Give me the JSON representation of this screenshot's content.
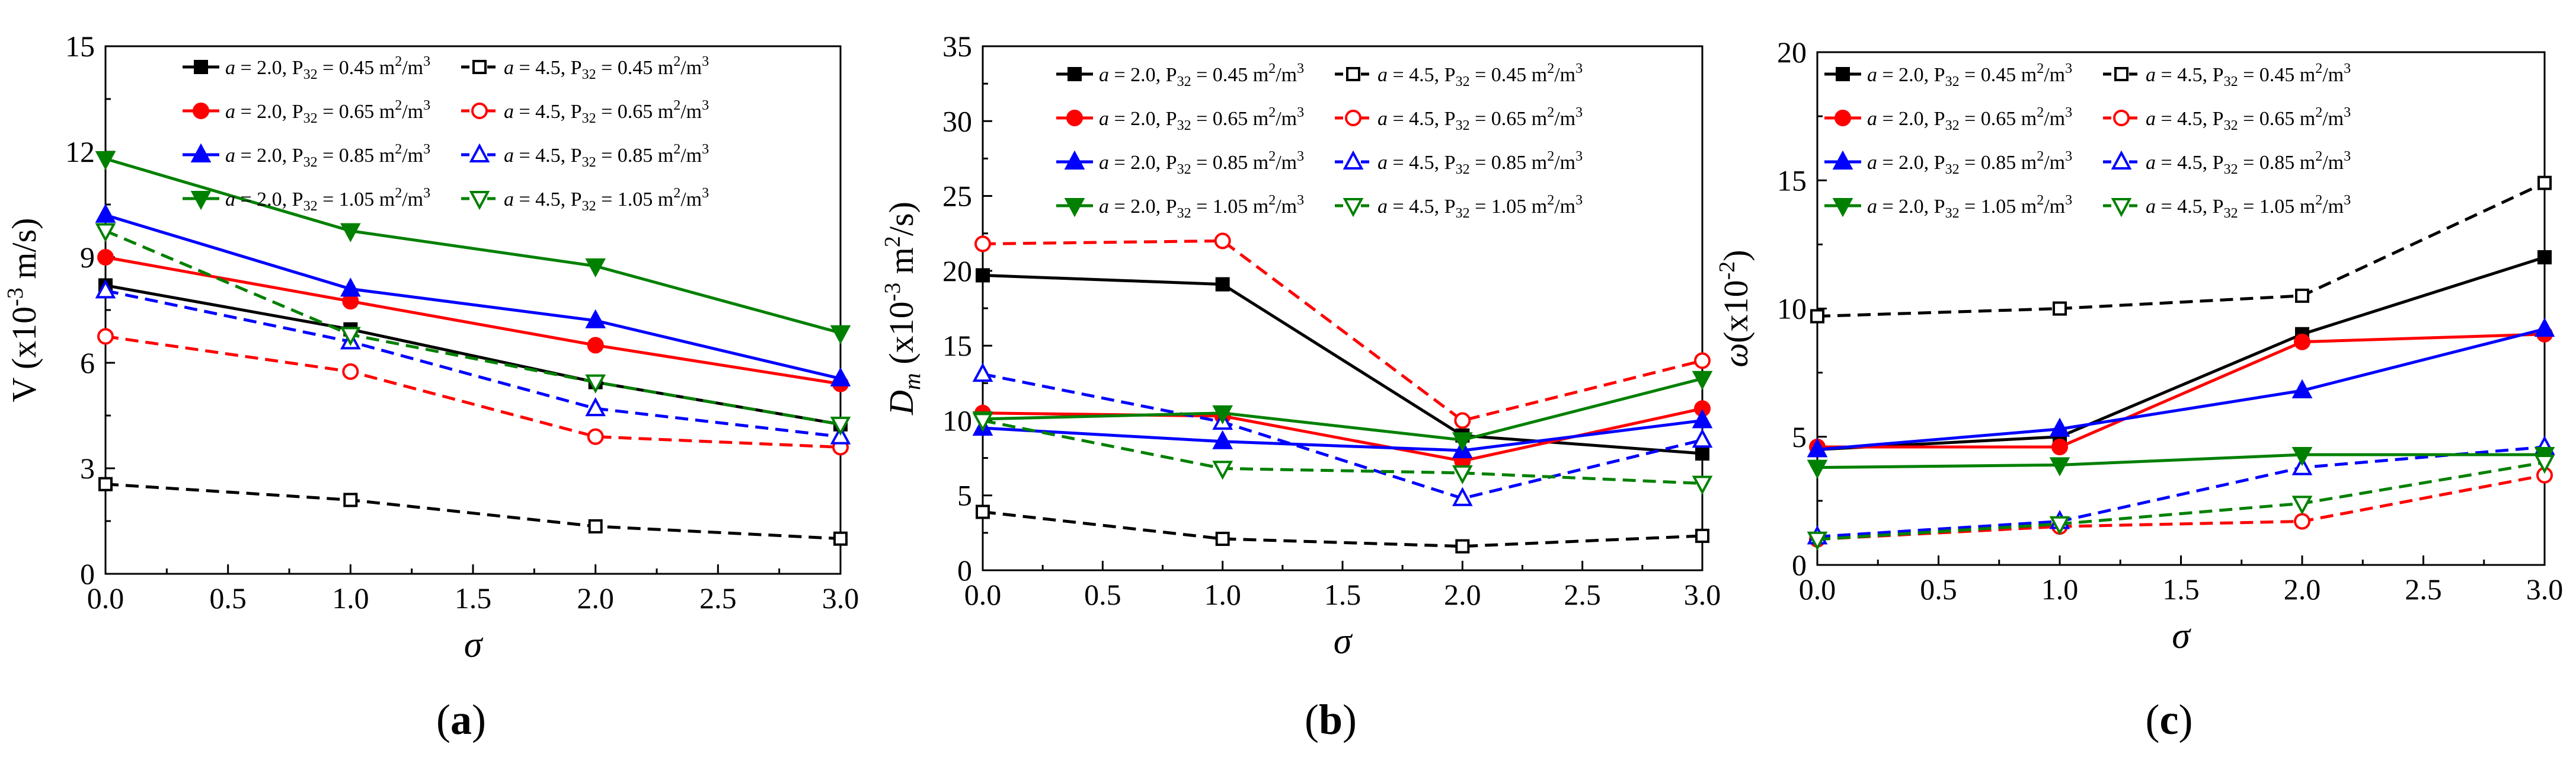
{
  "chart_data": [
    {
      "type": "line",
      "panel_label": "a",
      "xlabel": "σ",
      "ylabel": "V (x10⁻³ m/s)",
      "x": [
        0.0,
        1.0,
        2.0,
        3.0
      ],
      "xlim": [
        0.0,
        3.0
      ],
      "ylim": [
        0,
        15
      ],
      "xticks": [
        "0.0",
        "0.5",
        "1.0",
        "1.5",
        "2.0",
        "2.5",
        "3.0"
      ],
      "yticks": [
        "0",
        "3",
        "6",
        "9",
        "12",
        "15"
      ],
      "series": [
        {
          "name": "a = 2.0, P32 = 0.45 m²/m³",
          "color": "#000000",
          "marker": "square",
          "filled": true,
          "dashed": false,
          "values": [
            8.2,
            6.95,
            5.45,
            4.25
          ]
        },
        {
          "name": "a = 4.5, P32 = 0.45 m²/m³",
          "color": "#000000",
          "marker": "square",
          "filled": false,
          "dashed": true,
          "values": [
            2.55,
            2.1,
            1.35,
            1.0
          ]
        },
        {
          "name": "a = 2.0, P32 = 0.65 m²/m³",
          "color": "#ff0000",
          "marker": "circle",
          "filled": true,
          "dashed": false,
          "values": [
            9.0,
            7.75,
            6.5,
            5.4
          ]
        },
        {
          "name": "a = 4.5, P32 = 0.65 m²/m³",
          "color": "#ff0000",
          "marker": "circle",
          "filled": false,
          "dashed": true,
          "values": [
            6.75,
            5.75,
            3.9,
            3.6
          ]
        },
        {
          "name": "a = 2.0, P32 = 0.85 m²/m³",
          "color": "#0000ff",
          "marker": "triangle-up",
          "filled": true,
          "dashed": false,
          "values": [
            10.2,
            8.1,
            7.2,
            5.55
          ]
        },
        {
          "name": "a = 4.5, P32 = 0.85 m²/m³",
          "color": "#0000ff",
          "marker": "triangle-up",
          "filled": false,
          "dashed": true,
          "values": [
            8.05,
            6.6,
            4.7,
            3.9
          ]
        },
        {
          "name": "a = 2.0, P32 = 1.05 m²/m³",
          "color": "#008000",
          "marker": "triangle-down",
          "filled": true,
          "dashed": false,
          "values": [
            11.8,
            9.75,
            8.75,
            6.85
          ]
        },
        {
          "name": "a = 4.5, P32 = 1.05 m²/m³",
          "color": "#008000",
          "marker": "triangle-down",
          "filled": false,
          "dashed": true,
          "values": [
            9.75,
            6.8,
            5.45,
            4.25
          ]
        }
      ]
    },
    {
      "type": "line",
      "panel_label": "b",
      "xlabel": "σ",
      "ylabel": "Dm (x10⁻³ m²/s)",
      "x": [
        0.0,
        1.0,
        2.0,
        3.0
      ],
      "xlim": [
        0.0,
        3.0
      ],
      "ylim": [
        0,
        35
      ],
      "xticks": [
        "0.0",
        "0.5",
        "1.0",
        "1.5",
        "2.0",
        "2.5",
        "3.0"
      ],
      "yticks": [
        "0",
        "5",
        "10",
        "15",
        "20",
        "25",
        "30",
        "35"
      ],
      "series": [
        {
          "name": "a = 2.0, P32 = 0.45 m²/m³",
          "color": "#000000",
          "marker": "square",
          "filled": true,
          "dashed": false,
          "values": [
            19.7,
            19.1,
            9.0,
            7.8
          ]
        },
        {
          "name": "a = 4.5, P32 = 0.45 m²/m³",
          "color": "#000000",
          "marker": "square",
          "filled": false,
          "dashed": true,
          "values": [
            3.9,
            2.1,
            1.6,
            2.3
          ]
        },
        {
          "name": "a = 2.0, P32 = 0.65 m²/m³",
          "color": "#ff0000",
          "marker": "circle",
          "filled": true,
          "dashed": false,
          "values": [
            10.5,
            10.3,
            7.3,
            10.8
          ]
        },
        {
          "name": "a = 4.5, P32 = 0.65 m²/m³",
          "color": "#ff0000",
          "marker": "circle",
          "filled": false,
          "dashed": true,
          "values": [
            21.8,
            22.0,
            10.0,
            14.0
          ]
        },
        {
          "name": "a = 2.0, P32 = 0.85 m²/m³",
          "color": "#0000ff",
          "marker": "triangle-up",
          "filled": true,
          "dashed": false,
          "values": [
            9.5,
            8.6,
            8.0,
            10.0
          ]
        },
        {
          "name": "a = 4.5, P32 = 0.85 m²/m³",
          "color": "#0000ff",
          "marker": "triangle-up",
          "filled": false,
          "dashed": true,
          "values": [
            13.1,
            9.9,
            4.8,
            8.7
          ]
        },
        {
          "name": "a = 2.0, P32 = 1.05 m²/m³",
          "color": "#008000",
          "marker": "triangle-down",
          "filled": true,
          "dashed": false,
          "values": [
            10.1,
            10.5,
            8.7,
            12.8
          ]
        },
        {
          "name": "a = 4.5, P32 = 1.05 m²/m³",
          "color": "#008000",
          "marker": "triangle-down",
          "filled": false,
          "dashed": true,
          "values": [
            10.0,
            6.8,
            6.5,
            5.8
          ]
        }
      ]
    },
    {
      "type": "line",
      "panel_label": "c",
      "xlabel": "σ",
      "ylabel": "ω (x10⁻²)",
      "x": [
        0.0,
        1.0,
        2.0,
        3.0
      ],
      "xlim": [
        0.0,
        3.0
      ],
      "ylim": [
        0,
        20
      ],
      "xticks": [
        "0.0",
        "0.5",
        "1.0",
        "1.5",
        "2.0",
        "2.5",
        "3.0"
      ],
      "yticks": [
        "0",
        "5",
        "10",
        "15",
        "20"
      ],
      "series": [
        {
          "name": "a = 2.0, P32 = 0.45 m²/m³",
          "color": "#000000",
          "marker": "square",
          "filled": true,
          "dashed": false,
          "values": [
            4.5,
            5.0,
            9.0,
            12.0
          ]
        },
        {
          "name": "a = 4.5, P32 = 0.45 m²/m³",
          "color": "#000000",
          "marker": "square",
          "filled": false,
          "dashed": true,
          "values": [
            9.7,
            10.0,
            10.5,
            14.9
          ]
        },
        {
          "name": "a = 2.0, P32 = 0.65 m²/m³",
          "color": "#ff0000",
          "marker": "circle",
          "filled": true,
          "dashed": false,
          "values": [
            4.6,
            4.6,
            8.7,
            9.0
          ]
        },
        {
          "name": "a = 4.5, P32 = 0.65 m²/m³",
          "color": "#ff0000",
          "marker": "circle",
          "filled": false,
          "dashed": true,
          "values": [
            1.0,
            1.5,
            1.7,
            3.5
          ]
        },
        {
          "name": "a = 2.0, P32 = 0.85 m²/m³",
          "color": "#0000ff",
          "marker": "triangle-up",
          "filled": true,
          "dashed": false,
          "values": [
            4.5,
            5.3,
            6.8,
            9.2
          ]
        },
        {
          "name": "a = 4.5, P32 = 0.85 m²/m³",
          "color": "#0000ff",
          "marker": "triangle-up",
          "filled": false,
          "dashed": true,
          "values": [
            1.1,
            1.7,
            3.8,
            4.6
          ]
        },
        {
          "name": "a = 2.0, P32 = 1.05 m²/m³",
          "color": "#008000",
          "marker": "triangle-down",
          "filled": true,
          "dashed": false,
          "values": [
            3.8,
            3.9,
            4.3,
            4.3
          ]
        },
        {
          "name": "a = 4.5, P32 = 1.05 m²/m³",
          "color": "#008000",
          "marker": "triangle-down",
          "filled": false,
          "dashed": true,
          "values": [
            1.0,
            1.6,
            2.4,
            4.0
          ]
        }
      ]
    }
  ],
  "legend_entries": [
    {
      "a": "a",
      "left": " = 2.0, P",
      "sub": "32",
      "right": " = 0.45 m",
      "unit2": "2",
      "slash": "/m",
      "unit3": "3"
    },
    {
      "a": "a",
      "left": " = 4.5, P",
      "sub": "32",
      "right": " = 0.45 m",
      "unit2": "2",
      "slash": "/m",
      "unit3": "3"
    },
    {
      "a": "a",
      "left": " = 2.0, P",
      "sub": "32",
      "right": " = 0.65 m",
      "unit2": "2",
      "slash": "/m",
      "unit3": "3"
    },
    {
      "a": "a",
      "left": " = 4.5, P",
      "sub": "32",
      "right": " = 0.65 m",
      "unit2": "2",
      "slash": "/m",
      "unit3": "3"
    },
    {
      "a": "a",
      "left": " = 2.0, P",
      "sub": "32",
      "right": " = 0.85 m",
      "unit2": "2",
      "slash": "/m",
      "unit3": "3"
    },
    {
      "a": "a",
      "left": " = 4.5, P",
      "sub": "32",
      "right": " = 0.85 m",
      "unit2": "2",
      "slash": "/m",
      "unit3": "3"
    },
    {
      "a": "a",
      "left": " = 2.0, P",
      "sub": "32",
      "right": " = 1.05 m",
      "unit2": "2",
      "slash": "/m",
      "unit3": "3"
    },
    {
      "a": "a",
      "left": " = 4.5, P",
      "sub": "32",
      "right": " = 1.05 m",
      "unit2": "2",
      "slash": "/m",
      "unit3": "3"
    }
  ],
  "ylabel_parts": [
    {
      "main": "V (x10",
      "sup": "-3",
      "rest": " m/s)"
    },
    {
      "italic": "D",
      "sub": "m",
      "main": " (x10",
      "sup": "-3",
      "mid": " m",
      "sup2": "2",
      "rest": "/s)"
    },
    {
      "italic": "ω",
      "main": "(x10",
      "sup": "-2",
      "rest": ")"
    }
  ]
}
